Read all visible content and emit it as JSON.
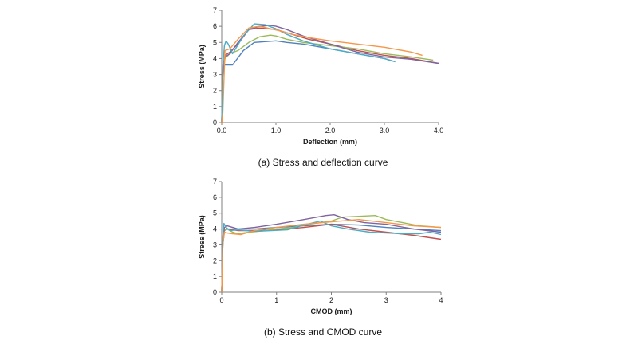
{
  "figure": {
    "caption_a": "(a)  Stress  and  deflection  curve",
    "caption_b": "(b)  Stress  and  CMOD  curve"
  },
  "chart_data": [
    {
      "type": "line",
      "xlabel": "Deflection (mm)",
      "ylabel": "Stress (MPa)",
      "xlim": [
        0,
        4
      ],
      "ylim": [
        0,
        7
      ],
      "xticks": [
        "0.0",
        "1.0",
        "2.0",
        "3.0",
        "4.0"
      ],
      "yticks": [
        "0",
        "1",
        "2",
        "3",
        "4",
        "5",
        "6",
        "7"
      ],
      "grid": false,
      "legend": "none",
      "series": [
        {
          "color": "#4f81bd",
          "x": [
            0,
            0.02,
            0.05,
            0.1,
            0.2,
            0.4,
            0.6,
            0.8,
            1.0,
            1.2,
            1.5,
            2.0,
            2.5,
            3.0,
            3.2
          ],
          "y": [
            0,
            3.0,
            3.6,
            3.6,
            3.6,
            4.5,
            5.0,
            5.05,
            5.1,
            5.0,
            4.9,
            4.6,
            4.3,
            4.0,
            3.8
          ]
        },
        {
          "color": "#c0504d",
          "x": [
            0,
            0.02,
            0.06,
            0.15,
            0.3,
            0.5,
            0.7,
            1.0,
            1.3,
            1.6,
            2.0,
            2.5,
            3.0,
            3.5,
            4.0
          ],
          "y": [
            0,
            3.0,
            4.2,
            4.4,
            4.9,
            5.8,
            5.9,
            5.8,
            5.5,
            5.2,
            4.9,
            4.5,
            4.2,
            4.0,
            3.7
          ]
        },
        {
          "color": "#9bbb59",
          "x": [
            0,
            0.02,
            0.06,
            0.15,
            0.3,
            0.5,
            0.7,
            0.9,
            1.0,
            1.2,
            1.5,
            2.0,
            2.5,
            3.0,
            3.5,
            3.9
          ],
          "y": [
            0,
            3.0,
            4.0,
            4.3,
            4.5,
            5.0,
            5.35,
            5.45,
            5.4,
            5.2,
            5.0,
            4.8,
            4.6,
            4.3,
            4.1,
            3.9
          ]
        },
        {
          "color": "#8064a2",
          "x": [
            0,
            0.02,
            0.06,
            0.15,
            0.3,
            0.5,
            0.7,
            0.9,
            1.0,
            1.2,
            1.5,
            2.0,
            2.5,
            3.0,
            3.5,
            4.0
          ],
          "y": [
            0,
            3.0,
            4.1,
            4.3,
            5.0,
            5.8,
            6.0,
            6.05,
            6.0,
            5.8,
            5.4,
            4.9,
            4.4,
            4.1,
            3.95,
            3.7
          ]
        },
        {
          "color": "#4bacc6",
          "x": [
            0,
            0.02,
            0.05,
            0.08,
            0.12,
            0.2,
            0.4,
            0.6,
            0.8,
            1.0,
            1.2,
            1.5,
            2.0,
            2.5,
            3.0,
            3.2
          ],
          "y": [
            0,
            3.5,
            4.8,
            5.1,
            4.9,
            4.3,
            5.4,
            6.15,
            6.1,
            5.85,
            5.5,
            5.1,
            4.6,
            4.3,
            4.0,
            3.8
          ]
        },
        {
          "color": "#f79646",
          "x": [
            0,
            0.02,
            0.06,
            0.15,
            0.3,
            0.5,
            0.7,
            0.9,
            1.1,
            1.3,
            1.6,
            2.0,
            2.5,
            3.0,
            3.5,
            3.7
          ],
          "y": [
            0,
            0.6,
            4.5,
            4.6,
            5.2,
            5.9,
            6.0,
            5.85,
            5.7,
            5.5,
            5.3,
            5.1,
            4.9,
            4.7,
            4.4,
            4.2
          ]
        }
      ]
    },
    {
      "type": "line",
      "xlabel": "CMOD (mm)",
      "ylabel": "Stress (MPa)",
      "xlim": [
        0,
        4
      ],
      "ylim": [
        0,
        7
      ],
      "xticks": [
        "0",
        "1",
        "2",
        "3",
        "4"
      ],
      "yticks": [
        "0",
        "1",
        "2",
        "3",
        "4",
        "5",
        "6",
        "7"
      ],
      "grid": false,
      "legend": "none",
      "series": [
        {
          "color": "#4f81bd",
          "x": [
            0,
            0.02,
            0.05,
            0.1,
            0.3,
            0.6,
            1.0,
            1.5,
            2.0,
            2.5,
            3.0,
            3.5,
            4.0
          ],
          "y": [
            0,
            3.0,
            3.9,
            4.0,
            4.0,
            4.0,
            4.1,
            4.2,
            4.3,
            4.25,
            4.1,
            4.0,
            3.9
          ]
        },
        {
          "color": "#c0504d",
          "x": [
            0,
            0.02,
            0.05,
            0.1,
            0.3,
            0.6,
            1.0,
            1.5,
            2.0,
            2.5,
            3.0,
            3.5,
            4.0
          ],
          "y": [
            0,
            3.0,
            3.9,
            4.0,
            3.9,
            3.9,
            3.95,
            4.1,
            4.3,
            4.0,
            3.8,
            3.6,
            3.35
          ]
        },
        {
          "color": "#9bbb59",
          "x": [
            0,
            0.02,
            0.05,
            0.1,
            0.2,
            0.3,
            0.5,
            0.8,
            1.0,
            1.3,
            1.6,
            2.0,
            2.2,
            2.5,
            2.8,
            3.0,
            3.3,
            3.6,
            4.0
          ],
          "y": [
            0,
            3.0,
            3.9,
            4.0,
            3.8,
            3.7,
            3.8,
            3.9,
            4.0,
            4.1,
            4.3,
            4.5,
            4.75,
            4.8,
            4.85,
            4.6,
            4.4,
            4.2,
            4.1
          ]
        },
        {
          "color": "#8064a2",
          "x": [
            0,
            0.02,
            0.05,
            0.1,
            0.3,
            0.6,
            1.0,
            1.5,
            1.9,
            2.05,
            2.3,
            2.6,
            3.0,
            3.5,
            4.0
          ],
          "y": [
            0,
            3.0,
            4.1,
            4.2,
            4.0,
            4.1,
            4.3,
            4.6,
            4.85,
            4.9,
            4.6,
            4.4,
            4.3,
            4.0,
            3.8
          ]
        },
        {
          "color": "#4bacc6",
          "x": [
            0,
            0.02,
            0.04,
            0.08,
            0.15,
            0.3,
            0.6,
            0.9,
            1.2,
            1.5,
            1.8,
            2.0,
            2.3,
            2.7,
            3.0,
            3.3,
            3.6,
            3.8,
            4.0
          ],
          "y": [
            0,
            3.5,
            4.35,
            4.1,
            3.9,
            3.95,
            3.85,
            3.9,
            3.95,
            4.25,
            4.5,
            4.2,
            4.0,
            3.8,
            3.75,
            3.7,
            3.7,
            3.8,
            3.65
          ]
        },
        {
          "color": "#f79646",
          "x": [
            0,
            0.02,
            0.05,
            0.1,
            0.2,
            0.35,
            0.6,
            1.0,
            1.5,
            2.0,
            2.5,
            3.0,
            3.5,
            4.0
          ],
          "y": [
            0,
            3.0,
            3.8,
            3.75,
            3.7,
            3.65,
            3.9,
            4.1,
            4.3,
            4.45,
            4.6,
            4.4,
            4.2,
            4.1
          ]
        }
      ]
    }
  ]
}
